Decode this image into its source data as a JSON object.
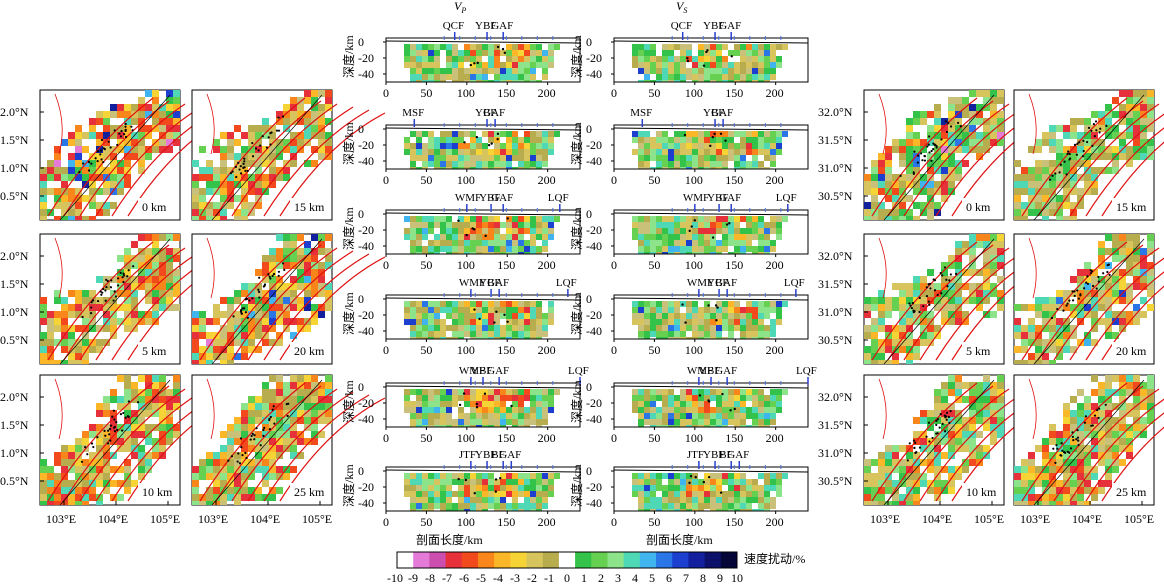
{
  "chart_data": {
    "type": "heatmap",
    "title_vp_main": "V",
    "title_vp_sub": "P",
    "title_vs_main": "V",
    "title_vs_sub": "S",
    "map_lon_ticks": [
      "103°E",
      "104°E",
      "105°E"
    ],
    "map_lat_ticks": [
      "32.0°N",
      "31.5°N",
      "31.0°N",
      "30.5°N"
    ],
    "map_depths_col1": [
      "0 km",
      "5 km",
      "10 km"
    ],
    "map_depths_col2": [
      "15 km",
      "20 km",
      "25 km"
    ],
    "profile_ylabel": "深度/km",
    "profile_xlabel": "剖面长度/km",
    "profile_xticks": [
      0,
      50,
      100,
      150,
      200
    ],
    "profile_yticks": [
      0,
      -20,
      -40
    ],
    "profiles": [
      {
        "faults": [
          {
            "name": "QCF",
            "x": 85
          },
          {
            "name": "YBF",
            "x": 125
          },
          {
            "name": "GAF",
            "x": 145
          }
        ],
        "length": 240
      },
      {
        "faults": [
          {
            "name": "MSF",
            "x": 35
          },
          {
            "name": "YBF",
            "x": 125
          },
          {
            "name": "GAF",
            "x": 135
          }
        ],
        "length": 240
      },
      {
        "faults": [
          {
            "name": "WMF",
            "x": 100
          },
          {
            "name": "YBF",
            "x": 130
          },
          {
            "name": "GAF",
            "x": 145
          },
          {
            "name": "LQF",
            "x": 215
          }
        ],
        "length": 240
      },
      {
        "faults": [
          {
            "name": "WMF",
            "x": 105
          },
          {
            "name": "YBF",
            "x": 130
          },
          {
            "name": "GAF",
            "x": 140
          },
          {
            "name": "LQF",
            "x": 225
          }
        ],
        "length": 240
      },
      {
        "faults": [
          {
            "name": "WMF",
            "x": 105
          },
          {
            "name": "YBF",
            "x": 120
          },
          {
            "name": "GAF",
            "x": 140
          },
          {
            "name": "LQF",
            "x": 240
          }
        ],
        "length": 240
      },
      {
        "faults": [
          {
            "name": "JTF",
            "x": 105
          },
          {
            "name": "YBF",
            "x": 125
          },
          {
            "name": "BF",
            "x": 145
          },
          {
            "name": "GAF",
            "x": 155
          }
        ],
        "length": 240
      }
    ],
    "colorbar": {
      "label": "速度扰动/%",
      "ticks": [
        "-10",
        "-9",
        "-8",
        "-7",
        "-6",
        "-5",
        "-4",
        "-3",
        "-2",
        "-1",
        "0",
        "1",
        "2",
        "3",
        "4",
        "5",
        "6",
        "7",
        "8",
        "9",
        "10"
      ],
      "colors": [
        "#ffffff",
        "#e57ad8",
        "#cc4fb0",
        "#e7313a",
        "#f24a1c",
        "#f8861a",
        "#fbb728",
        "#f6d436",
        "#d8c45c",
        "#b8ad4e",
        "#ffffff",
        "#33c24a",
        "#66d050",
        "#8de38a",
        "#4fd8b6",
        "#3fb4ee",
        "#2a76e6",
        "#1c3fd0",
        "#12209e",
        "#0b116a",
        "#040638"
      ]
    }
  }
}
